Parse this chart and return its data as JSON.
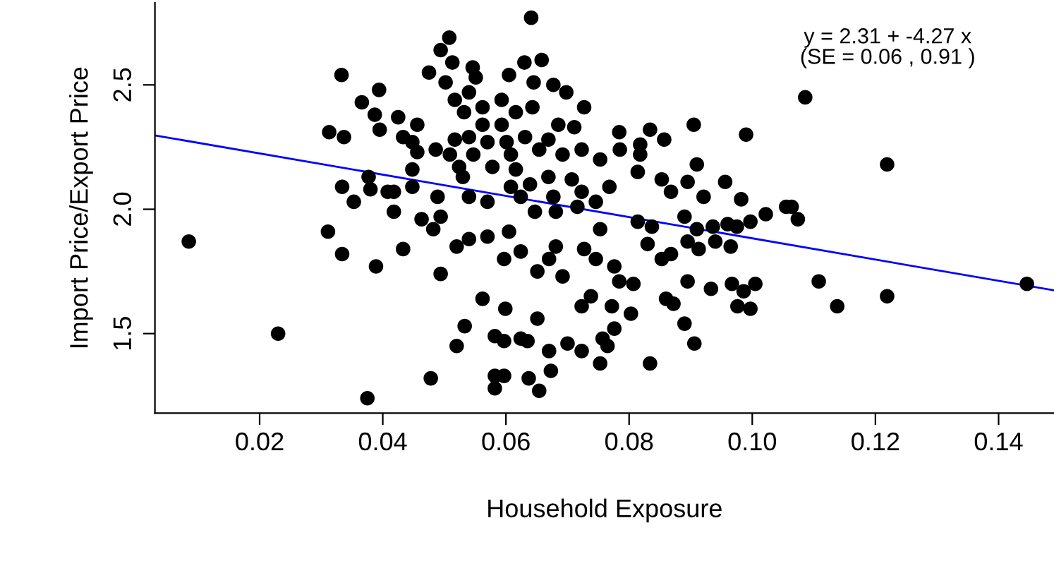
{
  "chart_data": {
    "type": "scatter",
    "xlabel": "Household Exposure",
    "ylabel": "Import Price/Export Price",
    "annotations": [
      "y = 2.31 + -4.27 x",
      "(SE = 0.06 , 0.91 )"
    ],
    "xlim": [
      0.003,
      0.149
    ],
    "ylim": [
      1.18,
      2.83
    ],
    "xticks": [
      {
        "value": 0.02,
        "label": "0.02"
      },
      {
        "value": 0.04,
        "label": "0.04"
      },
      {
        "value": 0.06,
        "label": "0.06"
      },
      {
        "value": 0.08,
        "label": "0.08"
      },
      {
        "value": 0.1,
        "label": "0.10"
      },
      {
        "value": 0.12,
        "label": "0.12"
      },
      {
        "value": 0.14,
        "label": "0.14"
      }
    ],
    "yticks": [
      {
        "value": 1.5,
        "label": "1.5"
      },
      {
        "value": 2.0,
        "label": "2.0"
      },
      {
        "value": 2.5,
        "label": "2.5"
      }
    ],
    "grid": false,
    "legend": false,
    "series": [
      {
        "marker": "circle",
        "color": "#000000",
        "x": [
          0.0333,
          0.0394,
          0.0366,
          0.0387,
          0.0395,
          0.0313,
          0.0337,
          0.0377,
          0.0334,
          0.038,
          0.0408,
          0.0353,
          0.0418,
          0.0085,
          0.0311,
          0.0334,
          0.0389,
          0.023,
          0.0375,
          0.1086,
          0.1219,
          0.1064,
          0.1074,
          0.1108,
          0.1138,
          0.1219,
          0.1446,
          0.0905,
          0.099,
          0.091,
          0.0784,
          0.0834,
          0.0857,
          0.0818,
          0.0785,
          0.0818,
          0.0895,
          0.0956,
          0.0982,
          0.0853,
          0.0814,
          0.0753,
          0.0768,
          0.0868,
          0.0921,
          0.0746,
          0.1022,
          0.1055,
          0.096,
          0.0753,
          0.0814,
          0.0837,
          0.089,
          0.0936,
          0.091,
          0.0975,
          0.0997,
          0.0895,
          0.0913,
          0.094,
          0.0965,
          0.083,
          0.0853,
          0.0868,
          0.0746,
          0.0776,
          0.0784,
          0.0807,
          0.0895,
          0.0933,
          0.0967,
          0.1005,
          0.0986,
          0.0976,
          0.0997,
          0.086,
          0.0872,
          0.0772,
          0.0803,
          0.0776,
          0.0757,
          0.0765,
          0.089,
          0.0906,
          0.0753,
          0.0834,
          0.0738,
          0.0433,
          0.0494,
          0.0482,
          0.052,
          0.054,
          0.057,
          0.0605,
          0.0597,
          0.0624,
          0.0651,
          0.067,
          0.0681,
          0.0692,
          0.0727,
          0.0723,
          0.0562,
          0.0599,
          0.0651,
          0.0533,
          0.052,
          0.0582,
          0.0597,
          0.0624,
          0.0635,
          0.067,
          0.0673,
          0.07,
          0.0723,
          0.0478,
          0.0582,
          0.0597,
          0.0582,
          0.0637,
          0.0654,
          0.0494,
          0.0641,
          0.0508,
          0.0494,
          0.0513,
          0.0475,
          0.0502,
          0.0546,
          0.0551,
          0.0605,
          0.063,
          0.0658,
          0.0645,
          0.0677,
          0.0698,
          0.054,
          0.0517,
          0.0593,
          0.0562,
          0.0532,
          0.0616,
          0.0643,
          0.0727,
          0.0425,
          0.0456,
          0.0685,
          0.0711,
          0.0562,
          0.0593,
          0.0517,
          0.054,
          0.0433,
          0.0448,
          0.057,
          0.0601,
          0.0631,
          0.0669,
          0.0456,
          0.0486,
          0.0509,
          0.0547,
          0.0578,
          0.0608,
          0.0654,
          0.0692,
          0.0723,
          0.0448,
          0.0524,
          0.053,
          0.0616,
          0.0639,
          0.0669,
          0.0707,
          0.0418,
          0.0448,
          0.054,
          0.057,
          0.0608,
          0.0624,
          0.0677,
          0.0723,
          0.0463,
          0.0489,
          0.0681,
          0.0716,
          0.0647
        ],
        "values": [
          2.54,
          2.48,
          2.43,
          2.38,
          2.32,
          2.31,
          2.29,
          2.13,
          2.09,
          2.08,
          2.07,
          2.03,
          1.99,
          1.87,
          1.91,
          1.82,
          1.77,
          1.5,
          1.24,
          2.45,
          2.18,
          2.01,
          1.96,
          1.71,
          1.61,
          1.65,
          1.7,
          2.34,
          2.3,
          2.18,
          2.31,
          2.32,
          2.28,
          2.26,
          2.24,
          2.22,
          2.11,
          2.11,
          2.04,
          2.12,
          2.15,
          2.2,
          2.09,
          2.07,
          2.05,
          2.03,
          1.98,
          2.01,
          1.94,
          1.92,
          1.95,
          1.93,
          1.97,
          1.93,
          1.92,
          1.93,
          1.95,
          1.87,
          1.84,
          1.87,
          1.85,
          1.86,
          1.8,
          1.82,
          1.8,
          1.77,
          1.71,
          1.7,
          1.71,
          1.68,
          1.7,
          1.7,
          1.67,
          1.61,
          1.6,
          1.64,
          1.62,
          1.61,
          1.58,
          1.52,
          1.48,
          1.45,
          1.54,
          1.46,
          1.38,
          1.38,
          1.65,
          1.84,
          1.74,
          1.92,
          1.85,
          1.88,
          1.89,
          1.91,
          1.8,
          1.83,
          1.75,
          1.8,
          1.85,
          1.73,
          1.84,
          1.61,
          1.64,
          1.6,
          1.56,
          1.53,
          1.45,
          1.49,
          1.47,
          1.48,
          1.47,
          1.43,
          1.35,
          1.46,
          1.43,
          1.32,
          1.33,
          1.33,
          1.28,
          1.32,
          1.27,
          1.97,
          2.77,
          2.69,
          2.64,
          2.59,
          2.55,
          2.51,
          2.57,
          2.53,
          2.54,
          2.59,
          2.6,
          2.51,
          2.5,
          2.47,
          2.47,
          2.44,
          2.44,
          2.41,
          2.39,
          2.39,
          2.41,
          2.41,
          2.37,
          2.34,
          2.34,
          2.33,
          2.34,
          2.34,
          2.28,
          2.29,
          2.29,
          2.27,
          2.27,
          2.27,
          2.29,
          2.28,
          2.23,
          2.24,
          2.22,
          2.22,
          2.17,
          2.22,
          2.24,
          2.22,
          2.24,
          2.16,
          2.17,
          2.13,
          2.16,
          2.1,
          2.13,
          2.12,
          2.07,
          2.09,
          2.05,
          2.03,
          2.09,
          2.05,
          2.05,
          2.07,
          1.96,
          2.05,
          1.99,
          2.01,
          1.99
        ]
      },
      {
        "type": "line",
        "marker": "none",
        "color": "#0000ff",
        "x": [
          0.003,
          0.149
        ],
        "values": [
          2.297,
          1.674
        ]
      }
    ]
  }
}
